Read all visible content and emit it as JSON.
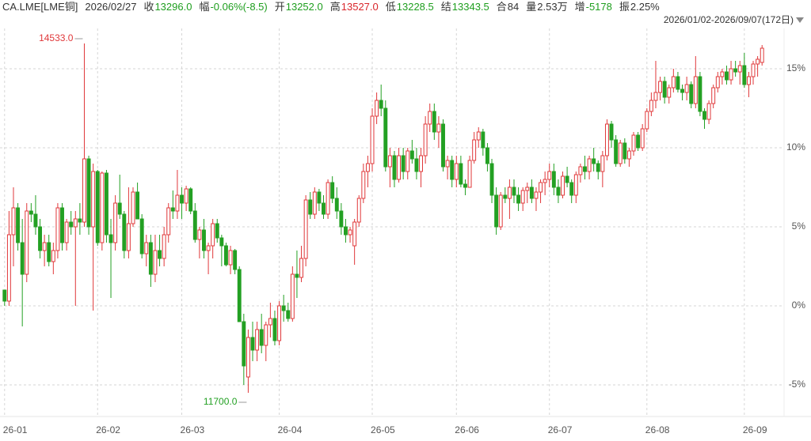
{
  "chart_data": {
    "type": "candlestick",
    "symbol": "CA.LME[LME铜]",
    "date": "2026/02/27",
    "info": [
      {
        "label": "收",
        "value": "13296.0",
        "color": "#1e9e1e"
      },
      {
        "label": "幅",
        "value": "-0.06%(-8.5)",
        "color": "#1e9e1e"
      },
      {
        "label": "开",
        "value": "13252.0",
        "color": "#1e9e1e"
      },
      {
        "label": "高",
        "value": "13527.0",
        "color": "#d9262b"
      },
      {
        "label": "低",
        "value": "13228.5",
        "color": "#1e9e1e"
      },
      {
        "label": "结",
        "value": "13343.5",
        "color": "#1e9e1e"
      },
      {
        "label": "合",
        "value": "84",
        "color": "#333333"
      },
      {
        "label": "量",
        "value": "2.53万",
        "color": "#333333"
      },
      {
        "label": "增",
        "value": "-5178",
        "color": "#1e9e1e"
      },
      {
        "label": "振",
        "value": "2.25%",
        "color": "#333333"
      }
    ],
    "range": "2026/01/02-2026/09/07(172日)",
    "max_label": "14533.0",
    "min_label": "11700.0",
    "up_color": "#e0383a",
    "down_color": "#23a023",
    "ylim": [
      -6.9,
      17.85
    ],
    "yticks": [
      {
        "value": -5,
        "label": "-5%"
      },
      {
        "value": 0,
        "label": "0%"
      },
      {
        "value": 5,
        "label": "5%"
      },
      {
        "value": 10,
        "label": "10%"
      },
      {
        "value": 15,
        "label": "15%"
      }
    ],
    "grid": true,
    "categories": [
      "26-01",
      null,
      null,
      null,
      null,
      null,
      null,
      null,
      null,
      null,
      null,
      null,
      null,
      null,
      null,
      null,
      null,
      null,
      null,
      null,
      null,
      "26-02",
      null,
      null,
      null,
      null,
      null,
      null,
      null,
      null,
      null,
      null,
      null,
      null,
      null,
      null,
      null,
      null,
      null,
      null,
      "26-03",
      null,
      null,
      null,
      null,
      null,
      null,
      null,
      null,
      null,
      null,
      null,
      null,
      null,
      null,
      null,
      null,
      null,
      null,
      null,
      null,
      null,
      "26-04",
      null,
      null,
      null,
      null,
      null,
      null,
      null,
      null,
      null,
      null,
      null,
      null,
      null,
      null,
      null,
      null,
      null,
      null,
      null,
      null,
      "26-05",
      null,
      null,
      null,
      null,
      null,
      null,
      null,
      null,
      null,
      null,
      null,
      null,
      null,
      null,
      null,
      null,
      null,
      null,
      "26-06",
      null,
      null,
      null,
      null,
      null,
      null,
      null,
      null,
      null,
      null,
      null,
      null,
      null,
      null,
      null,
      null,
      null,
      null,
      null,
      null,
      "26-07",
      null,
      null,
      null,
      null,
      null,
      null,
      null,
      null,
      null,
      null,
      null,
      null,
      null,
      null,
      null,
      null,
      null,
      null,
      null,
      null,
      null,
      "26-08",
      null,
      null,
      null,
      null,
      null,
      null,
      null,
      null,
      null,
      null,
      null,
      null,
      null,
      null,
      null,
      null,
      null,
      null,
      null,
      null,
      null,
      "26-09",
      null,
      null
    ],
    "candles": [
      [
        1.0,
        1.0,
        0.0,
        0.3
      ],
      [
        0.3,
        6.0,
        0.0,
        4.5
      ],
      [
        4.5,
        7.5,
        2.5,
        6.2
      ],
      [
        6.2,
        6.5,
        3.5,
        4.0
      ],
      [
        4.0,
        5.5,
        -1.3,
        2.0
      ],
      [
        2.0,
        6.5,
        1.5,
        6.0
      ],
      [
        6.0,
        6.5,
        5.3,
        5.8
      ],
      [
        5.8,
        7.0,
        4.5,
        5.0
      ],
      [
        5.0,
        5.5,
        3.0,
        3.5
      ],
      [
        3.5,
        4.5,
        2.5,
        4.0
      ],
      [
        4.0,
        4.5,
        2.5,
        2.8
      ],
      [
        2.8,
        4.0,
        2.0,
        3.5
      ],
      [
        3.5,
        6.5,
        3.0,
        6.2
      ],
      [
        6.2,
        6.5,
        3.5,
        4.0
      ],
      [
        4.0,
        5.5,
        3.5,
        5.3
      ],
      [
        5.3,
        6.0,
        4.5,
        5.0
      ],
      [
        5.0,
        6.0,
        0.0,
        5.5
      ],
      [
        5.5,
        6.5,
        4.5,
        5.3
      ],
      [
        5.3,
        16.6,
        5.0,
        9.3
      ],
      [
        9.3,
        9.5,
        4.5,
        5.0
      ],
      [
        5.0,
        9.0,
        -0.3,
        8.5
      ],
      [
        8.5,
        8.6,
        3.8,
        4.0
      ],
      [
        4.0,
        8.5,
        3.5,
        8.4
      ],
      [
        8.4,
        8.6,
        4.0,
        4.5
      ],
      [
        4.5,
        5.5,
        0.5,
        4.0
      ],
      [
        4.0,
        7.0,
        3.5,
        6.5
      ],
      [
        6.5,
        8.3,
        5.5,
        5.8
      ],
      [
        5.8,
        6.0,
        3.0,
        3.5
      ],
      [
        3.5,
        7.5,
        3.0,
        5.2
      ],
      [
        5.2,
        7.5,
        5.0,
        7.2
      ],
      [
        7.2,
        7.8,
        5.5,
        5.5
      ],
      [
        5.5,
        5.8,
        3.0,
        3.3
      ],
      [
        3.3,
        4.5,
        2.5,
        4.0
      ],
      [
        4.0,
        4.5,
        1.2,
        2.0
      ],
      [
        2.0,
        4.5,
        1.5,
        3.5
      ],
      [
        3.5,
        4.5,
        2.5,
        3.0
      ],
      [
        3.0,
        5.0,
        2.5,
        4.5
      ],
      [
        4.5,
        6.5,
        4.0,
        6.2
      ],
      [
        6.2,
        7.3,
        5.5,
        6.0
      ],
      [
        6.0,
        8.6,
        5.5,
        7.0
      ],
      [
        7.0,
        7.5,
        5.5,
        6.5
      ],
      [
        6.5,
        7.6,
        6.0,
        7.4
      ],
      [
        7.4,
        7.5,
        5.8,
        6.0
      ],
      [
        6.0,
        6.5,
        4.0,
        4.2
      ],
      [
        4.2,
        5.0,
        3.0,
        4.8
      ],
      [
        4.8,
        5.5,
        3.0,
        3.5
      ],
      [
        3.5,
        4.0,
        2.0,
        3.8
      ],
      [
        3.8,
        5.5,
        3.0,
        5.2
      ],
      [
        5.2,
        5.5,
        4.0,
        4.3
      ],
      [
        4.3,
        4.5,
        2.5,
        3.8
      ],
      [
        3.8,
        4.0,
        2.5,
        2.6
      ],
      [
        2.6,
        3.8,
        2.0,
        3.5
      ],
      [
        3.5,
        3.6,
        2.0,
        2.3
      ],
      [
        2.3,
        2.5,
        -1.0,
        -1.0
      ],
      [
        -1.0,
        -0.5,
        -5.0,
        -3.8
      ],
      [
        -4.5,
        -1.5,
        -5.5,
        -2.0
      ],
      [
        -2.0,
        -1.0,
        -3.5,
        -2.8
      ],
      [
        -2.8,
        -1.0,
        -3.5,
        -1.5
      ],
      [
        -1.5,
        -0.5,
        -3.0,
        -2.5
      ],
      [
        -2.5,
        -1.0,
        -3.5,
        -1.2
      ],
      [
        -1.2,
        0.2,
        -2.0,
        -0.8
      ],
      [
        -0.8,
        -0.3,
        -2.5,
        -2.2
      ],
      [
        -2.2,
        0.3,
        -2.5,
        0.0
      ],
      [
        0.0,
        0.7,
        -1.0,
        -0.3
      ],
      [
        -0.3,
        0.2,
        -1.0,
        -0.8
      ],
      [
        -0.8,
        2.5,
        -1.0,
        2.0
      ],
      [
        2.0,
        3.5,
        0.5,
        1.8
      ],
      [
        1.8,
        3.8,
        1.5,
        3.0
      ],
      [
        3.0,
        7.0,
        2.5,
        6.7
      ],
      [
        6.7,
        7.2,
        5.5,
        5.8
      ],
      [
        5.8,
        7.5,
        5.5,
        7.2
      ],
      [
        7.2,
        7.4,
        6.0,
        6.5
      ],
      [
        6.5,
        7.0,
        5.5,
        5.8
      ],
      [
        5.8,
        8.0,
        5.5,
        7.8
      ],
      [
        7.8,
        8.2,
        6.5,
        6.8
      ],
      [
        6.8,
        7.5,
        5.5,
        6.0
      ],
      [
        6.0,
        6.5,
        4.5,
        5.0
      ],
      [
        5.0,
        5.5,
        4.0,
        4.5
      ],
      [
        4.5,
        5.0,
        4.0,
        4.8
      ],
      [
        3.8,
        5.5,
        2.6,
        5.3
      ],
      [
        5.3,
        7.0,
        5.0,
        6.8
      ],
      [
        6.8,
        9.0,
        6.5,
        8.5
      ],
      [
        8.5,
        9.5,
        7.5,
        9.0
      ],
      [
        9.0,
        12.5,
        8.5,
        12.0
      ],
      [
        12.0,
        13.5,
        11.5,
        13.0
      ],
      [
        13.0,
        14.0,
        12.0,
        12.5
      ],
      [
        12.5,
        13.0,
        8.5,
        8.8
      ],
      [
        8.8,
        10.0,
        7.5,
        9.5
      ],
      [
        9.5,
        9.8,
        7.5,
        8.0
      ],
      [
        8.0,
        10.0,
        7.8,
        9.5
      ],
      [
        9.5,
        10.0,
        8.0,
        8.5
      ],
      [
        8.5,
        10.0,
        8.0,
        9.8
      ],
      [
        9.8,
        10.5,
        9.0,
        9.3
      ],
      [
        9.3,
        10.0,
        8.0,
        8.5
      ],
      [
        8.5,
        10.0,
        7.5,
        9.5
      ],
      [
        9.5,
        12.0,
        9.0,
        11.5
      ],
      [
        11.5,
        12.8,
        11.0,
        12.3
      ],
      [
        12.3,
        12.8,
        10.5,
        11.0
      ],
      [
        11.0,
        12.0,
        10.0,
        11.5
      ],
      [
        11.5,
        11.8,
        8.5,
        8.8
      ],
      [
        8.8,
        9.5,
        8.0,
        9.2
      ],
      [
        9.2,
        9.5,
        7.5,
        8.0
      ],
      [
        8.0,
        9.5,
        7.5,
        9.0
      ],
      [
        9.0,
        9.5,
        7.5,
        7.7
      ],
      [
        7.7,
        8.0,
        7.0,
        7.5
      ],
      [
        7.5,
        9.5,
        7.5,
        9.2
      ],
      [
        9.2,
        11.0,
        9.0,
        10.5
      ],
      [
        10.5,
        11.3,
        10.0,
        11.0
      ],
      [
        11.0,
        11.2,
        9.5,
        10.0
      ],
      [
        10.0,
        10.3,
        8.5,
        9.0
      ],
      [
        9.0,
        9.3,
        6.5,
        7.0
      ],
      [
        7.0,
        7.5,
        4.5,
        5.0
      ],
      [
        5.0,
        7.2,
        4.8,
        7.0
      ],
      [
        7.0,
        7.5,
        6.5,
        6.8
      ],
      [
        6.8,
        8.0,
        5.5,
        7.5
      ],
      [
        7.5,
        8.0,
        6.5,
        7.0
      ],
      [
        7.0,
        7.5,
        6.0,
        6.5
      ],
      [
        6.5,
        7.5,
        6.0,
        7.3
      ],
      [
        7.3,
        7.8,
        6.5,
        7.5
      ],
      [
        7.5,
        8.0,
        6.5,
        6.8
      ],
      [
        6.8,
        7.5,
        6.0,
        7.2
      ],
      [
        7.2,
        8.0,
        6.5,
        7.8
      ],
      [
        7.8,
        8.5,
        7.0,
        8.0
      ],
      [
        8.0,
        9.0,
        7.5,
        8.5
      ],
      [
        8.5,
        9.0,
        7.0,
        7.5
      ],
      [
        7.5,
        8.0,
        6.5,
        7.0
      ],
      [
        7.0,
        8.5,
        6.8,
        8.2
      ],
      [
        8.2,
        8.8,
        7.5,
        7.8
      ],
      [
        7.8,
        8.0,
        6.5,
        7.0
      ],
      [
        7.0,
        8.5,
        6.5,
        8.3
      ],
      [
        8.3,
        9.0,
        7.8,
        8.8
      ],
      [
        8.8,
        9.5,
        8.0,
        8.5
      ],
      [
        8.5,
        9.5,
        8.0,
        9.3
      ],
      [
        9.3,
        10.0,
        8.5,
        9.0
      ],
      [
        9.0,
        9.2,
        8.0,
        8.5
      ],
      [
        8.5,
        9.8,
        7.5,
        9.5
      ],
      [
        9.5,
        11.8,
        9.2,
        11.5
      ],
      [
        11.5,
        11.7,
        10.0,
        10.5
      ],
      [
        10.5,
        10.8,
        8.8,
        9.0
      ],
      [
        9.0,
        10.5,
        8.8,
        10.3
      ],
      [
        10.3,
        10.6,
        9.0,
        9.3
      ],
      [
        9.3,
        10.0,
        8.8,
        9.8
      ],
      [
        9.8,
        11.0,
        9.5,
        10.8
      ],
      [
        10.8,
        11.0,
        9.8,
        10.0
      ],
      [
        10.0,
        11.5,
        9.8,
        11.2
      ],
      [
        11.2,
        12.5,
        11.0,
        12.3
      ],
      [
        12.3,
        13.5,
        12.0,
        13.0
      ],
      [
        13.0,
        15.5,
        12.5,
        13.5
      ],
      [
        13.5,
        14.5,
        13.0,
        14.2
      ],
      [
        14.2,
        14.5,
        12.8,
        13.2
      ],
      [
        13.2,
        14.0,
        12.8,
        13.8
      ],
      [
        13.8,
        15.0,
        13.5,
        14.5
      ],
      [
        14.5,
        14.8,
        13.5,
        13.7
      ],
      [
        13.7,
        14.0,
        13.0,
        13.5
      ],
      [
        13.5,
        14.5,
        13.0,
        14.0
      ],
      [
        14.0,
        14.2,
        12.5,
        12.8
      ],
      [
        12.8,
        15.8,
        12.5,
        14.5
      ],
      [
        14.5,
        14.8,
        12.0,
        12.3
      ],
      [
        12.3,
        12.5,
        11.2,
        11.8
      ],
      [
        11.8,
        13.0,
        11.5,
        12.8
      ],
      [
        12.8,
        14.0,
        12.5,
        13.8
      ],
      [
        13.8,
        14.8,
        13.5,
        14.5
      ],
      [
        14.5,
        15.0,
        14.0,
        14.8
      ],
      [
        14.8,
        15.2,
        14.0,
        14.3
      ],
      [
        14.3,
        15.5,
        14.0,
        15.0
      ],
      [
        15.0,
        15.5,
        14.5,
        14.8
      ],
      [
        14.8,
        15.5,
        14.0,
        15.2
      ],
      [
        15.2,
        16.0,
        13.8,
        14.0
      ],
      [
        14.0,
        14.8,
        13.2,
        14.5
      ],
      [
        14.5,
        15.5,
        14.0,
        15.3
      ],
      [
        15.3,
        15.8,
        14.5,
        15.6
      ],
      [
        15.4,
        16.5,
        15.2,
        16.3
      ]
    ]
  }
}
